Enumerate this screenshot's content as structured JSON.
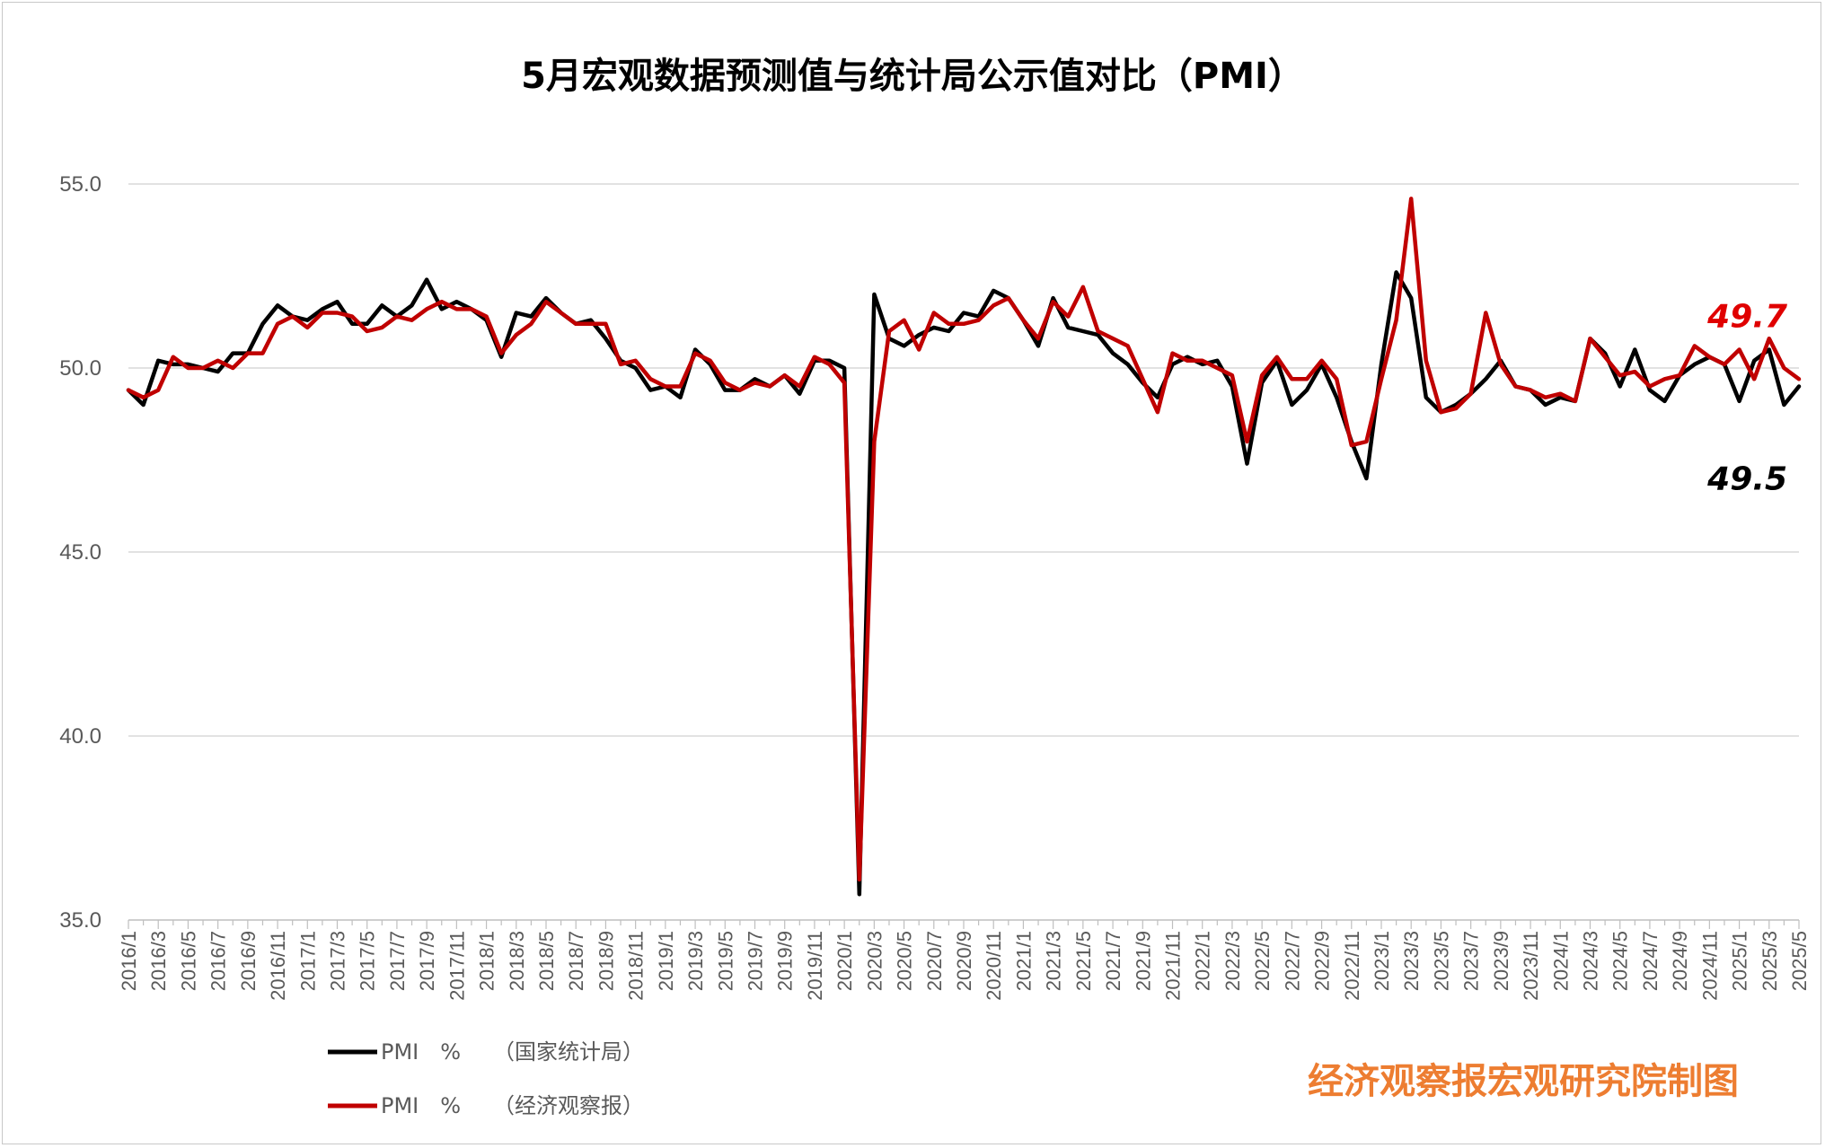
{
  "chart_data": {
    "type": "line",
    "title": "5月宏观数据预测值与统计局公示值对比（PMI）",
    "ylim": [
      35,
      55
    ],
    "yticks": [
      "55.0",
      "50.0",
      "45.0",
      "40.0",
      "35.0"
    ],
    "ytick_values": [
      55,
      50,
      45,
      40,
      35
    ],
    "grid": true,
    "legend_position": "bottom-left",
    "x": [
      "2016/1",
      "2016/2",
      "2016/3",
      "2016/4",
      "2016/5",
      "2016/6",
      "2016/7",
      "2016/8",
      "2016/9",
      "2016/10",
      "2016/11",
      "2016/12",
      "2017/1",
      "2017/2",
      "2017/3",
      "2017/4",
      "2017/5",
      "2017/6",
      "2017/7",
      "2017/8",
      "2017/9",
      "2017/10",
      "2017/11",
      "2017/12",
      "2018/1",
      "2018/2",
      "2018/3",
      "2018/4",
      "2018/5",
      "2018/6",
      "2018/7",
      "2018/8",
      "2018/9",
      "2018/10",
      "2018/11",
      "2018/12",
      "2019/1",
      "2019/2",
      "2019/3",
      "2019/4",
      "2019/5",
      "2019/6",
      "2019/7",
      "2019/8",
      "2019/9",
      "2019/10",
      "2019/11",
      "2019/12",
      "2020/1",
      "2020/2",
      "2020/3",
      "2020/4",
      "2020/5",
      "2020/6",
      "2020/7",
      "2020/8",
      "2020/9",
      "2020/10",
      "2020/11",
      "2020/12",
      "2021/1",
      "2021/2",
      "2021/3",
      "2021/4",
      "2021/5",
      "2021/6",
      "2021/7",
      "2021/8",
      "2021/9",
      "2021/10",
      "2021/11",
      "2021/12",
      "2022/1",
      "2022/2",
      "2022/3",
      "2022/4",
      "2022/5",
      "2022/6",
      "2022/7",
      "2022/8",
      "2022/9",
      "2022/10",
      "2022/11",
      "2022/12",
      "2023/1",
      "2023/2",
      "2023/3",
      "2023/4",
      "2023/5",
      "2023/6",
      "2023/7",
      "2023/8",
      "2023/9",
      "2023/10",
      "2023/11",
      "2023/12",
      "2024/1",
      "2024/2",
      "2024/3",
      "2024/4",
      "2024/5",
      "2024/6",
      "2024/7",
      "2024/8",
      "2024/9",
      "2024/10",
      "2024/11",
      "2024/12",
      "2025/1",
      "2025/2",
      "2025/3",
      "2025/4",
      "2025/5"
    ],
    "x_tick_labels": [
      "2016/1",
      "2016/3",
      "2016/5",
      "2016/7",
      "2016/9",
      "2016/11",
      "2017/1",
      "2017/3",
      "2017/5",
      "2017/7",
      "2017/9",
      "2017/11",
      "2018/1",
      "2018/3",
      "2018/5",
      "2018/7",
      "2018/9",
      "2018/11",
      "2019/1",
      "2019/3",
      "2019/5",
      "2019/7",
      "2019/9",
      "2019/11",
      "2020/1",
      "2020/3",
      "2020/5",
      "2020/7",
      "2020/9",
      "2020/11",
      "2021/1",
      "2021/3",
      "2021/5",
      "2021/7",
      "2021/9",
      "2021/11",
      "2022/1",
      "2022/3",
      "2022/5",
      "2022/7",
      "2022/9",
      "2022/11",
      "2023/1",
      "2023/3",
      "2023/5",
      "2023/7",
      "2023/9",
      "2023/11",
      "2024/1",
      "2024/3",
      "2024/5",
      "2024/7",
      "2024/9",
      "2024/11",
      "2025/1",
      "2025/3",
      "2025/5"
    ],
    "series": [
      {
        "name": "PMI　%　　（国家统计局）",
        "color": "#000000",
        "values": [
          49.4,
          49.0,
          50.2,
          50.1,
          50.1,
          50.0,
          49.9,
          50.4,
          50.4,
          51.2,
          51.7,
          51.4,
          51.3,
          51.6,
          51.8,
          51.2,
          51.2,
          51.7,
          51.4,
          51.7,
          52.4,
          51.6,
          51.8,
          51.6,
          51.3,
          50.3,
          51.5,
          51.4,
          51.9,
          51.5,
          51.2,
          51.3,
          50.8,
          50.2,
          50.0,
          49.4,
          49.5,
          49.2,
          50.5,
          50.1,
          49.4,
          49.4,
          49.7,
          49.5,
          49.8,
          49.3,
          50.2,
          50.2,
          50.0,
          35.7,
          52.0,
          50.8,
          50.6,
          50.9,
          51.1,
          51.0,
          51.5,
          51.4,
          52.1,
          51.9,
          51.3,
          50.6,
          51.9,
          51.1,
          51.0,
          50.9,
          50.4,
          50.1,
          49.6,
          49.2,
          50.1,
          50.3,
          50.1,
          50.2,
          49.5,
          47.4,
          49.6,
          50.2,
          49.0,
          49.4,
          50.1,
          49.2,
          48.0,
          47.0,
          50.1,
          52.6,
          51.9,
          49.2,
          48.8,
          49.0,
          49.3,
          49.7,
          50.2,
          49.5,
          49.4,
          49.0,
          49.2,
          49.1,
          50.8,
          50.4,
          49.5,
          50.5,
          49.4,
          49.1,
          49.8,
          50.1,
          50.3,
          50.1,
          49.1,
          50.2,
          50.5,
          49.0,
          49.5
        ]
      },
      {
        "name": "PMI　%　　（经济观察报）",
        "color": "#c00000",
        "values": [
          49.4,
          49.2,
          49.4,
          50.3,
          50.0,
          50.0,
          50.2,
          50.0,
          50.4,
          50.4,
          51.2,
          51.4,
          51.1,
          51.5,
          51.5,
          51.4,
          51.0,
          51.1,
          51.4,
          51.3,
          51.6,
          51.8,
          51.6,
          51.6,
          51.4,
          50.4,
          50.9,
          51.2,
          51.8,
          51.5,
          51.2,
          51.2,
          51.2,
          50.1,
          50.2,
          49.7,
          49.5,
          49.5,
          50.4,
          50.2,
          49.6,
          49.4,
          49.6,
          49.5,
          49.8,
          49.5,
          50.3,
          50.1,
          49.6,
          36.1,
          48.0,
          51.0,
          51.3,
          50.5,
          51.5,
          51.2,
          51.2,
          51.3,
          51.7,
          51.9,
          51.3,
          50.8,
          51.8,
          51.4,
          52.2,
          51.0,
          50.8,
          50.6,
          49.7,
          48.8,
          50.4,
          50.2,
          50.2,
          50.0,
          49.8,
          48.0,
          49.8,
          50.3,
          49.7,
          49.7,
          50.2,
          49.7,
          47.9,
          48.0,
          49.7,
          51.3,
          54.6,
          50.2,
          48.8,
          48.9,
          49.3,
          51.5,
          50.1,
          49.5,
          49.4,
          49.2,
          49.3,
          49.1,
          50.8,
          50.3,
          49.8,
          49.9,
          49.5,
          49.7,
          49.8,
          50.6,
          50.3,
          50.1,
          50.5,
          49.7,
          50.8,
          50.0,
          49.7
        ]
      }
    ],
    "annotations": [
      {
        "text": "49.7",
        "color": "#e00000",
        "series": 1
      },
      {
        "text": "49.5",
        "color": "#000000",
        "series": 0
      }
    ]
  },
  "credit": "经济观察报宏观研究院制图"
}
